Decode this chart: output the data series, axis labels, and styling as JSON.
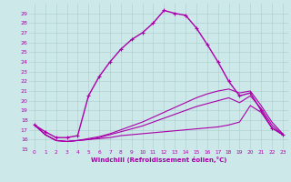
{
  "xlabel": "Windchill (Refroidissement éolien,°C)",
  "xlim": [
    -0.5,
    23.5
  ],
  "ylim": [
    15,
    30
  ],
  "xticks": [
    0,
    1,
    2,
    3,
    4,
    5,
    6,
    7,
    8,
    9,
    10,
    11,
    12,
    13,
    14,
    15,
    16,
    17,
    18,
    19,
    20,
    21,
    22,
    23
  ],
  "yticks": [
    15,
    16,
    17,
    18,
    19,
    20,
    21,
    22,
    23,
    24,
    25,
    26,
    27,
    28,
    29
  ],
  "bg_color": "#cce8e8",
  "line_color": "#aa00aa",
  "grid_color": "#aacccc",
  "lines": [
    {
      "x": [
        0,
        1,
        2,
        3,
        4,
        5,
        6,
        7,
        8,
        9,
        10,
        11,
        12,
        13,
        14,
        15,
        16,
        17,
        18,
        19,
        20,
        21,
        22,
        23
      ],
      "y": [
        17.5,
        16.8,
        16.2,
        16.2,
        16.4,
        20.5,
        22.5,
        24.0,
        25.3,
        26.3,
        27.0,
        28.0,
        29.3,
        29.0,
        28.8,
        27.5,
        25.8,
        24.0,
        22.0,
        20.5,
        20.8,
        19.0,
        17.2,
        16.5
      ],
      "marker": "+",
      "lw": 1.0
    },
    {
      "x": [
        0,
        1,
        2,
        3,
        4,
        5,
        6,
        7,
        8,
        9,
        10,
        11,
        12,
        13,
        14,
        15,
        16,
        17,
        18,
        19,
        20,
        21,
        22,
        23
      ],
      "y": [
        17.5,
        16.5,
        15.9,
        15.8,
        15.9,
        16.0,
        16.1,
        16.2,
        16.4,
        16.5,
        16.6,
        16.7,
        16.8,
        16.9,
        17.0,
        17.1,
        17.2,
        17.3,
        17.5,
        17.8,
        19.5,
        18.8,
        17.2,
        16.5
      ],
      "marker": null,
      "lw": 0.8
    },
    {
      "x": [
        0,
        1,
        2,
        3,
        4,
        5,
        6,
        7,
        8,
        9,
        10,
        11,
        12,
        13,
        14,
        15,
        16,
        17,
        18,
        19,
        20,
        21,
        22,
        23
      ],
      "y": [
        17.5,
        16.5,
        15.9,
        15.8,
        15.9,
        16.0,
        16.2,
        16.5,
        16.8,
        17.1,
        17.4,
        17.8,
        18.2,
        18.6,
        19.0,
        19.4,
        19.7,
        20.0,
        20.3,
        19.8,
        20.5,
        19.2,
        17.5,
        16.5
      ],
      "marker": null,
      "lw": 0.8
    },
    {
      "x": [
        0,
        1,
        2,
        3,
        4,
        5,
        6,
        7,
        8,
        9,
        10,
        11,
        12,
        13,
        14,
        15,
        16,
        17,
        18,
        19,
        20,
        21,
        22,
        23
      ],
      "y": [
        17.5,
        16.5,
        15.9,
        15.8,
        15.9,
        16.1,
        16.3,
        16.6,
        17.0,
        17.4,
        17.8,
        18.3,
        18.8,
        19.3,
        19.8,
        20.3,
        20.7,
        21.0,
        21.2,
        20.8,
        21.0,
        19.5,
        17.8,
        16.6
      ],
      "marker": null,
      "lw": 0.8
    }
  ]
}
